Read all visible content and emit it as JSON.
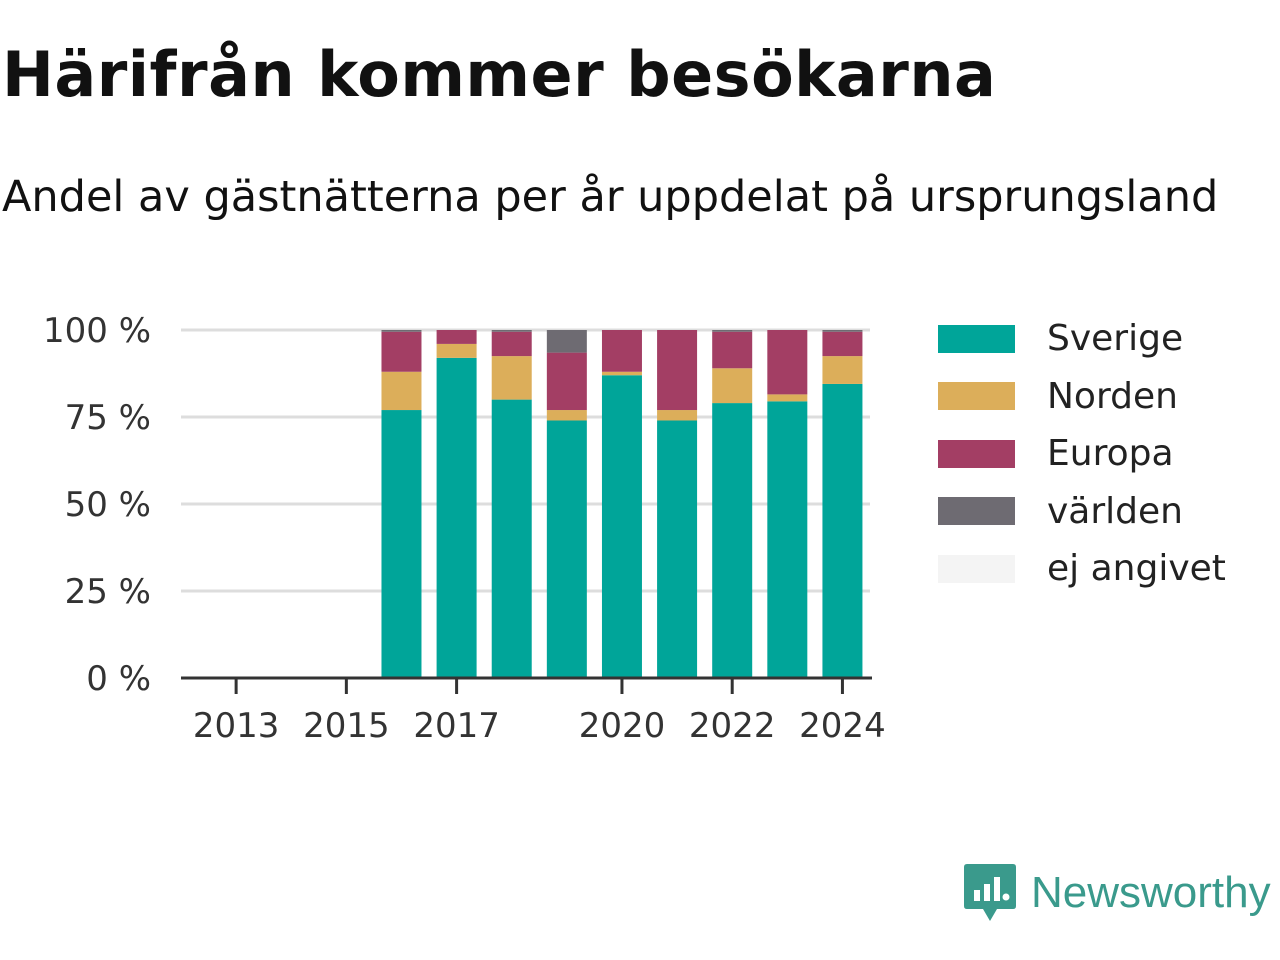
{
  "header": {
    "title": "Härifrån kommer besökarna",
    "subtitle": "Andel av gästnätterna per år uppdelat på ursprungsland"
  },
  "brand": {
    "name": "Newsworthy",
    "icon": "newsworthy-logo-icon",
    "color": "#3a9a8c"
  },
  "chart_data": {
    "type": "bar",
    "stacked": true,
    "x": [
      2016,
      2017,
      2018,
      2019,
      2020,
      2021,
      2022,
      2023,
      2024
    ],
    "xlim": [
      2012,
      2024.5
    ],
    "x_ticks": [
      "2013",
      "2015",
      "2017",
      "2020",
      "2022",
      "2024"
    ],
    "y_ticks": [
      "0 %",
      "25 %",
      "50 %",
      "75 %",
      "100 %"
    ],
    "ylim": [
      0,
      100
    ],
    "grid": true,
    "legend_position": "right",
    "series": [
      {
        "name": "Sverige",
        "color": "#00a599",
        "values": [
          77,
          92,
          80,
          74,
          87,
          74,
          79,
          79.5,
          84.5
        ]
      },
      {
        "name": "Norden",
        "color": "#dcae5a",
        "values": [
          11,
          4,
          12.5,
          3,
          1,
          3,
          10,
          2,
          8
        ]
      },
      {
        "name": "Europa",
        "color": "#a33e64",
        "values": [
          11.5,
          4,
          7,
          16.5,
          12,
          23,
          10.5,
          18.5,
          7
        ]
      },
      {
        "name": "världen",
        "color": "#6e6b72",
        "values": [
          0.5,
          0,
          0.5,
          6.5,
          0,
          0,
          0.5,
          0,
          0.5
        ]
      },
      {
        "name": "ej angivet",
        "color": "#f4f4f4",
        "values": [
          0,
          0,
          0,
          0,
          0,
          0,
          0,
          0,
          0
        ]
      }
    ]
  }
}
